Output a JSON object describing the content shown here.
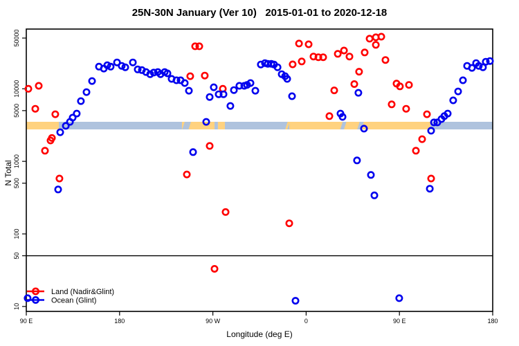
{
  "title": "25N-30N January (Ver 10)   2015-01-01 to 2020-12-18",
  "axes": {
    "x": {
      "label": "Longitude (deg E)",
      "ticks": [
        {
          "deg": 90,
          "label": "90 E"
        },
        {
          "deg": 180,
          "label": "180"
        },
        {
          "deg": 270,
          "label": "90 W"
        },
        {
          "deg": 360,
          "label": "0"
        },
        {
          "deg": 450,
          "label": "90 E"
        },
        {
          "deg": 540,
          "label": "180"
        }
      ],
      "range_deg_east": [
        90,
        540
      ]
    },
    "y": {
      "label": "N Total",
      "scale": "log",
      "ticks": [
        {
          "value": 50000,
          "label": "50000"
        },
        {
          "value": 10000,
          "label": "10000"
        },
        {
          "value": 5000,
          "label": "5000"
        },
        {
          "value": 1000,
          "label": "1000"
        },
        {
          "value": 500,
          "label": "500"
        },
        {
          "value": 100,
          "label": "100"
        },
        {
          "value": 50,
          "label": "50"
        },
        {
          "value": 10,
          "label": "10"
        }
      ],
      "range": [
        8.6,
        66000
      ]
    }
  },
  "reference_line": {
    "value": 50,
    "color": "#000000"
  },
  "colors": {
    "land_series": "#FF0000",
    "ocean_series": "#0000EE",
    "strip_land": "#FFD27F",
    "strip_ocean": "#AFC3DE",
    "frame": "#000000"
  },
  "legend": [
    {
      "key": "land",
      "label": "Land (Nadir&Glint)",
      "color": "#FF0000"
    },
    {
      "key": "ocean",
      "label": "Ocean (Glint)",
      "color": "#0000EE"
    }
  ],
  "surface_strip": {
    "value_center": 3100,
    "segments": [
      {
        "surface": "land",
        "from": 90,
        "to": 121.4
      },
      {
        "surface": "ocean",
        "from": 121.4,
        "to": 240.2
      },
      {
        "surface": "land",
        "from": 240.2,
        "to": 271.6
      },
      {
        "surface": "ocean",
        "from": 271.6,
        "to": 274.9
      },
      {
        "surface": "land",
        "from": 274.9,
        "to": 281.6
      },
      {
        "surface": "ocean",
        "from": 281.6,
        "to": 343.7
      },
      {
        "surface": "land",
        "from": 343.7,
        "to": 479.9
      },
      {
        "surface": "ocean",
        "from": 479.9,
        "to": 540
      }
    ],
    "streaks": [
      {
        "surface": "ocean",
        "at": 241.5
      },
      {
        "surface": "ocean",
        "at": 243.5
      },
      {
        "surface": "ocean",
        "at": 245.5
      },
      {
        "surface": "land",
        "at": 340.8
      },
      {
        "surface": "ocean",
        "at": 393.9
      },
      {
        "surface": "ocean",
        "at": 395.5
      },
      {
        "surface": "ocean",
        "at": 410.3
      },
      {
        "surface": "ocean",
        "at": 412.3
      }
    ]
  },
  "chart_data": {
    "type": "scatter",
    "title": "25N-30N January (Ver 10)   2015-01-01 to 2020-12-18",
    "xlabel": "Longitude (deg E)",
    "ylabel": "N Total",
    "x_range_deg_east": [
      90,
      540
    ],
    "y_log_range": [
      8.6,
      66000
    ],
    "grid": false,
    "legend_position": "bottom-left",
    "series": [
      {
        "name": "Land (Nadir&Glint)",
        "color": "#FF0000",
        "marker": "open-circle",
        "points": [
          [
            92.0,
            10000
          ],
          [
            102.0,
            11000
          ],
          [
            98.7,
            5300
          ],
          [
            118.0,
            4460
          ],
          [
            114.7,
            2100
          ],
          [
            113.4,
            1940
          ],
          [
            108.0,
            1400
          ],
          [
            122.0,
            580
          ],
          [
            248.2,
            14900
          ],
          [
            252.9,
            38500
          ],
          [
            256.9,
            38500
          ],
          [
            262.2,
            15200
          ],
          [
            279.6,
            10000
          ],
          [
            266.9,
            1630
          ],
          [
            244.9,
            660
          ],
          [
            282.3,
            200
          ],
          [
            271.6,
            33
          ],
          [
            343.7,
            140
          ],
          [
            347.0,
            21700
          ],
          [
            353.1,
            42000
          ],
          [
            355.7,
            23800
          ],
          [
            362.4,
            41000
          ],
          [
            367.1,
            27800
          ],
          [
            371.8,
            27200
          ],
          [
            376.4,
            27200
          ],
          [
            382.4,
            4200
          ],
          [
            387.1,
            9500
          ],
          [
            390.5,
            30300
          ],
          [
            396.5,
            33700
          ],
          [
            401.8,
            27800
          ],
          [
            406.5,
            11600
          ],
          [
            411.1,
            17200
          ],
          [
            416.5,
            31700
          ],
          [
            421.2,
            49000
          ],
          [
            427.2,
            51200
          ],
          [
            432.5,
            52300
          ],
          [
            427.2,
            40300
          ],
          [
            436.5,
            24900
          ],
          [
            442.5,
            6100
          ],
          [
            447.2,
            11800
          ],
          [
            450.5,
            10800
          ],
          [
            456.5,
            5300
          ],
          [
            459.2,
            11300
          ],
          [
            465.9,
            1400
          ],
          [
            471.9,
            2020
          ],
          [
            476.6,
            4460
          ],
          [
            480.6,
            580
          ]
        ]
      },
      {
        "name": "Ocean (Glint)",
        "color": "#0000EE",
        "marker": "open-circle",
        "points": [
          [
            91.3,
            13
          ],
          [
            120.7,
            410
          ],
          [
            122.7,
            2520
          ],
          [
            128.1,
            3080
          ],
          [
            132.1,
            3500
          ],
          [
            134.7,
            4000
          ],
          [
            138.7,
            4560
          ],
          [
            142.7,
            6760
          ],
          [
            148.1,
            9000
          ],
          [
            153.4,
            12800
          ],
          [
            160.1,
            20200
          ],
          [
            164.8,
            19000
          ],
          [
            168.1,
            21100
          ],
          [
            171.4,
            20200
          ],
          [
            177.5,
            23100
          ],
          [
            182.1,
            20700
          ],
          [
            185.5,
            19800
          ],
          [
            192.8,
            23100
          ],
          [
            197.5,
            18500
          ],
          [
            201.5,
            18100
          ],
          [
            205.5,
            17000
          ],
          [
            209.5,
            15900
          ],
          [
            212.9,
            16700
          ],
          [
            216.9,
            17000
          ],
          [
            219.5,
            15900
          ],
          [
            223.5,
            17000
          ],
          [
            226.2,
            16300
          ],
          [
            230.2,
            13700
          ],
          [
            234.9,
            13100
          ],
          [
            238.9,
            13100
          ],
          [
            242.9,
            12000
          ],
          [
            246.9,
            9400
          ],
          [
            250.9,
            1340
          ],
          [
            263.6,
            3500
          ],
          [
            266.9,
            7700
          ],
          [
            270.9,
            10500
          ],
          [
            275.6,
            8400
          ],
          [
            280.3,
            8400
          ],
          [
            286.9,
            5800
          ],
          [
            290.3,
            9600
          ],
          [
            295.6,
            11000
          ],
          [
            300.3,
            11000
          ],
          [
            303.0,
            11300
          ],
          [
            306.3,
            12000
          ],
          [
            311.0,
            9400
          ],
          [
            316.3,
            21600
          ],
          [
            320.3,
            22600
          ],
          [
            323.0,
            22100
          ],
          [
            326.4,
            22100
          ],
          [
            329.0,
            21600
          ],
          [
            332.4,
            19800
          ],
          [
            336.4,
            15900
          ],
          [
            339.7,
            14900
          ],
          [
            341.7,
            13700
          ],
          [
            346.4,
            7900
          ],
          [
            349.7,
            12
          ],
          [
            393.1,
            4560
          ],
          [
            395.1,
            4100
          ],
          [
            409.1,
            1030
          ],
          [
            410.4,
            8800
          ],
          [
            415.8,
            2820
          ],
          [
            422.5,
            650
          ],
          [
            425.8,
            340
          ],
          [
            449.8,
            13
          ],
          [
            479.3,
            420
          ],
          [
            480.6,
            2640
          ],
          [
            483.3,
            3440
          ],
          [
            486.6,
            3440
          ],
          [
            490.6,
            3830
          ],
          [
            493.3,
            4200
          ],
          [
            496.6,
            4560
          ],
          [
            501.9,
            6930
          ],
          [
            506.6,
            9200
          ],
          [
            511.3,
            13100
          ],
          [
            515.3,
            20700
          ],
          [
            520.0,
            19400
          ],
          [
            524.0,
            22600
          ],
          [
            526.6,
            20700
          ],
          [
            530.6,
            19800
          ],
          [
            533.3,
            23600
          ],
          [
            537.3,
            24100
          ]
        ]
      }
    ]
  }
}
